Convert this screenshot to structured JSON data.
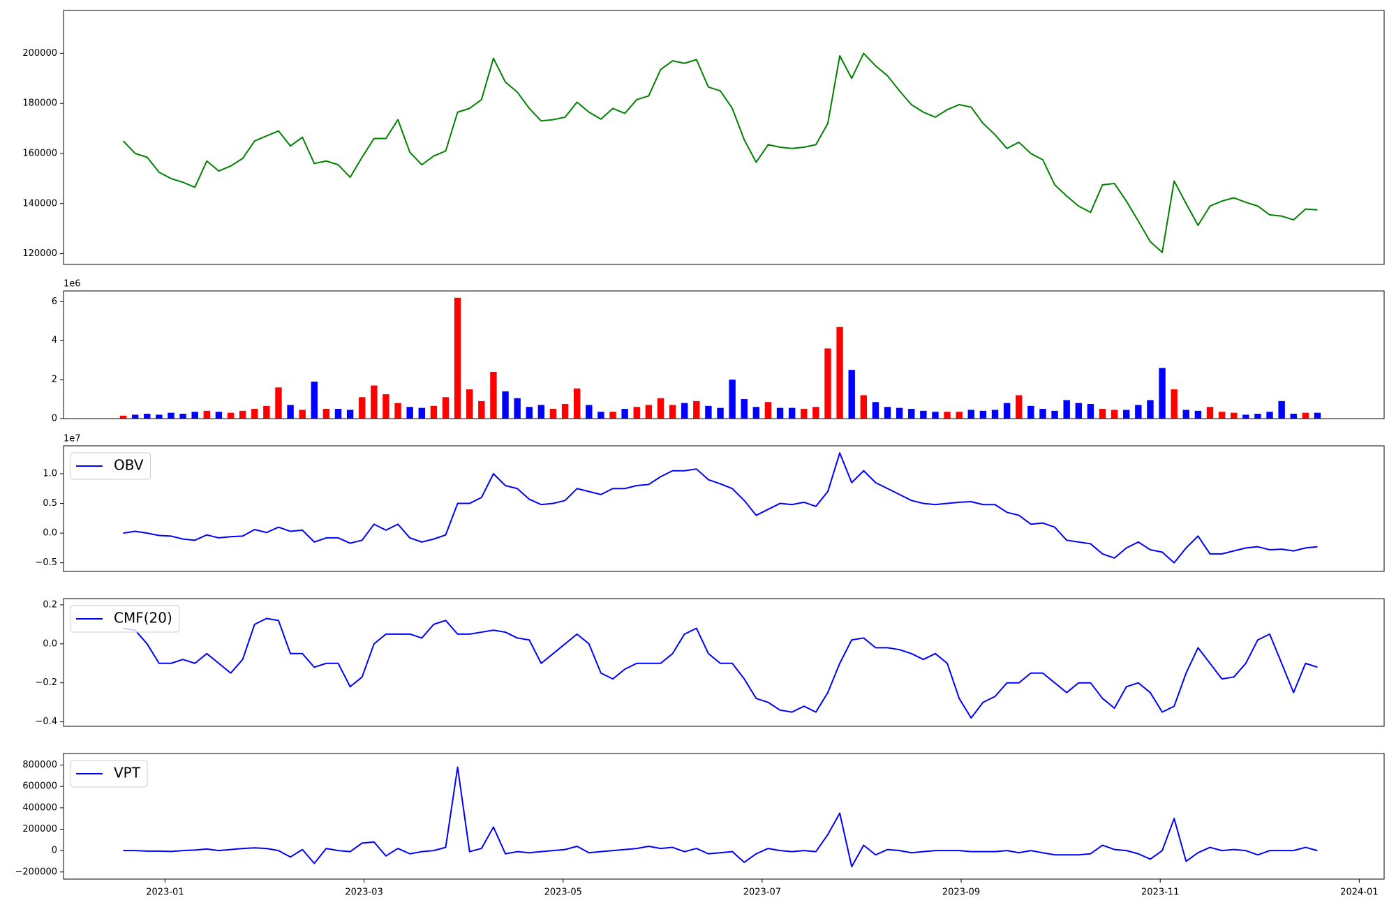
{
  "chart_data": [
    {
      "type": "line",
      "color": "green",
      "x": [
        -0.42,
        -0.3,
        -0.18,
        -0.06,
        0.06,
        0.18,
        0.3,
        0.42,
        0.54,
        0.66,
        0.78,
        0.9,
        1.02,
        1.14,
        1.26,
        1.38,
        1.5,
        1.62,
        1.74,
        1.86,
        1.98,
        2.1,
        2.22,
        2.34,
        2.46,
        2.58,
        2.7,
        2.82,
        2.94,
        3.06,
        3.18,
        3.3,
        3.42,
        3.54,
        3.66,
        3.78,
        3.9,
        4.02,
        4.14,
        4.26,
        4.38,
        4.5,
        4.62,
        4.74,
        4.86,
        4.98,
        5.1,
        5.22,
        5.34,
        5.46,
        5.58,
        5.7,
        5.82,
        5.94,
        6.06,
        6.18,
        6.3,
        6.42,
        6.54,
        6.66,
        6.78,
        6.9,
        7.02,
        7.14,
        7.26,
        7.38,
        7.5,
        7.62,
        7.74,
        7.86,
        7.98,
        8.1,
        8.22,
        8.34,
        8.46,
        8.58,
        8.7,
        8.82,
        8.94,
        9.06,
        9.18,
        9.3,
        9.42,
        9.54,
        9.66,
        9.78,
        9.9,
        10.02,
        10.14,
        10.26,
        10.38,
        10.5,
        10.62,
        10.74,
        10.86,
        10.98,
        11.1,
        11.22,
        11.34,
        11.46,
        11.58
      ],
      "values": [
        165000,
        160000,
        158500,
        152500,
        150000,
        148500,
        146500,
        157000,
        153000,
        155000,
        158000,
        165000,
        167000,
        169000,
        163000,
        166500,
        156000,
        157000,
        155500,
        150500,
        158500,
        166000,
        166000,
        173500,
        160500,
        155500,
        159000,
        161000,
        176500,
        178000,
        181500,
        198000,
        188500,
        184500,
        178000,
        173000,
        173500,
        174500,
        180500,
        176500,
        173700,
        178000,
        176000,
        181500,
        183000,
        193500,
        197000,
        196000,
        197500,
        186500,
        185000,
        178000,
        165500,
        156500,
        163500,
        162500,
        162000,
        162500,
        163500,
        172000,
        199000,
        190000,
        200000,
        195000,
        191000,
        185000,
        179500,
        176500,
        174500,
        177500,
        179500,
        178500,
        172000,
        167500,
        162000,
        164500,
        160000,
        157500,
        147500,
        143000,
        139000,
        136500,
        147500,
        148000,
        141000,
        133000,
        124800,
        120500,
        149000,
        140000,
        131300,
        139000,
        141000,
        142300,
        140500,
        139000,
        135500,
        135000,
        133500,
        137800,
        137500
      ],
      "xlim": [
        -1.02,
        12.25
      ],
      "ylim": [
        115700,
        217100
      ],
      "yticks": [
        120000,
        140000,
        160000,
        180000,
        200000
      ]
    },
    {
      "type": "bar",
      "up_color": "red",
      "down_color": "blue",
      "x": [
        -0.42,
        -0.3,
        -0.18,
        -0.06,
        0.06,
        0.18,
        0.3,
        0.42,
        0.54,
        0.66,
        0.78,
        0.9,
        1.02,
        1.14,
        1.26,
        1.38,
        1.5,
        1.62,
        1.74,
        1.86,
        1.98,
        2.1,
        2.22,
        2.34,
        2.46,
        2.58,
        2.7,
        2.82,
        2.94,
        3.06,
        3.18,
        3.3,
        3.42,
        3.54,
        3.66,
        3.78,
        3.9,
        4.02,
        4.14,
        4.26,
        4.38,
        4.5,
        4.62,
        4.74,
        4.86,
        4.98,
        5.1,
        5.22,
        5.34,
        5.46,
        5.58,
        5.7,
        5.82,
        5.94,
        6.06,
        6.18,
        6.3,
        6.42,
        6.54,
        6.66,
        6.78,
        6.9,
        7.02,
        7.14,
        7.26,
        7.38,
        7.5,
        7.62,
        7.74,
        7.86,
        7.98,
        8.1,
        8.22,
        8.34,
        8.46,
        8.58,
        8.7,
        8.82,
        8.94,
        9.06,
        9.18,
        9.3,
        9.42,
        9.54,
        9.66,
        9.78,
        9.9,
        10.02,
        10.14,
        10.26,
        10.38,
        10.5,
        10.62,
        10.74,
        10.86,
        10.98,
        11.1,
        11.22,
        11.34,
        11.46,
        11.58
      ],
      "values": [
        150000,
        200000,
        250000,
        200000,
        300000,
        250000,
        350000,
        400000,
        350000,
        300000,
        400000,
        500000,
        650000,
        1600000,
        700000,
        450000,
        1900000,
        500000,
        500000,
        450000,
        1100000,
        1700000,
        1250000,
        800000,
        600000,
        550000,
        650000,
        1100000,
        6200000,
        1500000,
        900000,
        2400000,
        1400000,
        1050000,
        600000,
        700000,
        500000,
        750000,
        1550000,
        700000,
        350000,
        350000,
        500000,
        600000,
        700000,
        1050000,
        700000,
        800000,
        900000,
        650000,
        550000,
        2000000,
        1000000,
        600000,
        850000,
        550000,
        550000,
        500000,
        600000,
        3600000,
        4700000,
        2500000,
        1200000,
        850000,
        600000,
        550000,
        500000,
        400000,
        350000,
        350000,
        350000,
        450000,
        400000,
        450000,
        800000,
        1200000,
        650000,
        500000,
        400000,
        950000,
        800000,
        750000,
        500000,
        450000,
        450000,
        700000,
        950000,
        2600000,
        1500000,
        450000,
        400000,
        600000,
        350000,
        300000,
        200000,
        250000,
        350000,
        900000,
        250000,
        300000,
        300000
      ],
      "xlim": [
        -1.02,
        12.25
      ],
      "ylim": [
        0,
        6550000
      ],
      "offset_label": "1e6",
      "yticks": [
        0,
        {
          "value": 2000000,
          "label": "2"
        },
        {
          "value": 4000000,
          "label": "4"
        },
        {
          "value": 6000000,
          "label": "6"
        }
      ]
    },
    {
      "type": "line",
      "legend": "upper left",
      "x": [
        -0.42,
        -0.3,
        -0.18,
        -0.06,
        0.06,
        0.18,
        0.3,
        0.42,
        0.54,
        0.66,
        0.78,
        0.9,
        1.02,
        1.14,
        1.26,
        1.38,
        1.5,
        1.62,
        1.74,
        1.86,
        1.98,
        2.1,
        2.22,
        2.34,
        2.46,
        2.58,
        2.7,
        2.82,
        2.94,
        3.06,
        3.18,
        3.3,
        3.42,
        3.54,
        3.66,
        3.78,
        3.9,
        4.02,
        4.14,
        4.26,
        4.38,
        4.5,
        4.62,
        4.74,
        4.86,
        4.98,
        5.1,
        5.22,
        5.34,
        5.46,
        5.58,
        5.7,
        5.82,
        5.94,
        6.06,
        6.18,
        6.3,
        6.42,
        6.54,
        6.66,
        6.78,
        6.9,
        7.02,
        7.14,
        7.26,
        7.38,
        7.5,
        7.62,
        7.74,
        7.86,
        7.98,
        8.1,
        8.22,
        8.34,
        8.46,
        8.58,
        8.7,
        8.82,
        8.94,
        9.06,
        9.18,
        9.3,
        9.42,
        9.54,
        9.66,
        9.78,
        9.9,
        10.02,
        10.14,
        10.26,
        10.38,
        10.5,
        10.62,
        10.74,
        10.86,
        10.98,
        11.1,
        11.22,
        11.34,
        11.46,
        11.58
      ],
      "series": [
        {
          "name": "OBV",
          "color": "blue",
          "values": [
            0,
            300000,
            0,
            -400000,
            -500000,
            -1000000,
            -1200000,
            -300000,
            -800000,
            -600000,
            -500000,
            600000,
            100000,
            1000000,
            300000,
            500000,
            -1500000,
            -800000,
            -800000,
            -1700000,
            -1200000,
            1500000,
            500000,
            1500000,
            -800000,
            -1500000,
            -1000000,
            -300000,
            5000000,
            5000000,
            6000000,
            10000000,
            8000000,
            7500000,
            5700000,
            4800000,
            5000000,
            5500000,
            7500000,
            7000000,
            6500000,
            7500000,
            7500000,
            8000000,
            8200000,
            9500000,
            10500000,
            10500000,
            10800000,
            9000000,
            8300000,
            7500000,
            5500000,
            3000000,
            4000000,
            5000000,
            4800000,
            5200000,
            4500000,
            7000000,
            13500000,
            8500000,
            10500000,
            8500000,
            7500000,
            6500000,
            5500000,
            5000000,
            4800000,
            5000000,
            5200000,
            5300000,
            4800000,
            4800000,
            3500000,
            3000000,
            1500000,
            1700000,
            1000000,
            -1200000,
            -1500000,
            -1800000,
            -3500000,
            -4200000,
            -2500000,
            -1500000,
            -2800000,
            -3200000,
            -5000000,
            -2500000,
            -500000,
            -3500000,
            -3500000,
            -3000000,
            -2500000,
            -2300000,
            -2800000,
            -2700000,
            -3000000,
            -2500000,
            -2300000
          ]
        }
      ],
      "xlim": [
        -1.02,
        12.25
      ],
      "ylim": [
        -6450000,
        14700000
      ],
      "offset_label": "1e7",
      "yticks": [
        {
          "value": -5000000,
          "label": "−0.5"
        },
        {
          "value": 0,
          "label": "0.0"
        },
        {
          "value": 5000000,
          "label": "0.5"
        },
        {
          "value": 10000000,
          "label": "1.0"
        }
      ]
    },
    {
      "type": "line",
      "legend": "upper left",
      "x": [
        -0.42,
        -0.3,
        -0.18,
        -0.06,
        0.06,
        0.18,
        0.3,
        0.42,
        0.54,
        0.66,
        0.78,
        0.9,
        1.02,
        1.14,
        1.26,
        1.38,
        1.5,
        1.62,
        1.74,
        1.86,
        1.98,
        2.1,
        2.22,
        2.34,
        2.46,
        2.58,
        2.7,
        2.82,
        2.94,
        3.06,
        3.18,
        3.3,
        3.42,
        3.54,
        3.66,
        3.78,
        3.9,
        4.02,
        4.14,
        4.26,
        4.38,
        4.5,
        4.62,
        4.74,
        4.86,
        4.98,
        5.1,
        5.22,
        5.34,
        5.46,
        5.58,
        5.7,
        5.82,
        5.94,
        6.06,
        6.18,
        6.3,
        6.42,
        6.54,
        6.66,
        6.78,
        6.9,
        7.02,
        7.14,
        7.26,
        7.38,
        7.5,
        7.62,
        7.74,
        7.86,
        7.98,
        8.1,
        8.22,
        8.34,
        8.46,
        8.58,
        8.7,
        8.82,
        8.94,
        9.06,
        9.18,
        9.3,
        9.42,
        9.54,
        9.66,
        9.78,
        9.9,
        10.02,
        10.14,
        10.26,
        10.38,
        10.5,
        10.62,
        10.74,
        10.86,
        10.98,
        11.1,
        11.22,
        11.34,
        11.46,
        11.58
      ],
      "series": [
        {
          "name": "CMF(20)",
          "color": "blue",
          "values": [
            0.08,
            0.07,
            0.0,
            -0.1,
            -0.1,
            -0.08,
            -0.1,
            -0.05,
            -0.1,
            -0.15,
            -0.08,
            0.1,
            0.13,
            0.12,
            -0.05,
            -0.05,
            -0.12,
            -0.1,
            -0.1,
            -0.22,
            -0.17,
            0.0,
            0.05,
            0.05,
            0.05,
            0.03,
            0.1,
            0.12,
            0.05,
            0.05,
            0.06,
            0.07,
            0.06,
            0.03,
            0.02,
            -0.1,
            -0.05,
            0.0,
            0.05,
            0.0,
            -0.15,
            -0.18,
            -0.13,
            -0.1,
            -0.1,
            -0.1,
            -0.05,
            0.05,
            0.08,
            -0.05,
            -0.1,
            -0.1,
            -0.18,
            -0.28,
            -0.3,
            -0.34,
            -0.35,
            -0.32,
            -0.35,
            -0.25,
            -0.1,
            0.02,
            0.03,
            -0.02,
            -0.02,
            -0.03,
            -0.05,
            -0.08,
            -0.05,
            -0.1,
            -0.28,
            -0.38,
            -0.3,
            -0.27,
            -0.2,
            -0.2,
            -0.15,
            -0.15,
            -0.2,
            -0.25,
            -0.2,
            -0.2,
            -0.28,
            -0.33,
            -0.22,
            -0.2,
            -0.25,
            -0.35,
            -0.32,
            -0.15,
            -0.02,
            -0.1,
            -0.18,
            -0.17,
            -0.1,
            0.02,
            0.05,
            -0.1,
            -0.25,
            -0.1,
            -0.12
          ]
        }
      ],
      "xlim": [
        -1.02,
        12.25
      ],
      "ylim": [
        -0.423,
        0.232
      ],
      "yticks": [
        {
          "value": -0.4,
          "label": "−0.4"
        },
        {
          "value": -0.2,
          "label": "−0.2"
        },
        {
          "value": 0,
          "label": "0.0"
        },
        0.2
      ]
    },
    {
      "type": "line",
      "legend": "upper left",
      "x": [
        -0.42,
        -0.3,
        -0.18,
        -0.06,
        0.06,
        0.18,
        0.3,
        0.42,
        0.54,
        0.66,
        0.78,
        0.9,
        1.02,
        1.14,
        1.26,
        1.38,
        1.5,
        1.62,
        1.74,
        1.86,
        1.98,
        2.1,
        2.22,
        2.34,
        2.46,
        2.58,
        2.7,
        2.82,
        2.94,
        3.06,
        3.18,
        3.3,
        3.42,
        3.54,
        3.66,
        3.78,
        3.9,
        4.02,
        4.14,
        4.26,
        4.38,
        4.5,
        4.62,
        4.74,
        4.86,
        4.98,
        5.1,
        5.22,
        5.34,
        5.46,
        5.58,
        5.7,
        5.82,
        5.94,
        6.06,
        6.18,
        6.3,
        6.42,
        6.54,
        6.66,
        6.78,
        6.9,
        7.02,
        7.14,
        7.26,
        7.38,
        7.5,
        7.62,
        7.74,
        7.86,
        7.98,
        8.1,
        8.22,
        8.34,
        8.46,
        8.58,
        8.7,
        8.82,
        8.94,
        9.06,
        9.18,
        9.3,
        9.42,
        9.54,
        9.66,
        9.78,
        9.9,
        10.02,
        10.14,
        10.26,
        10.38,
        10.5,
        10.62,
        10.74,
        10.86,
        10.98,
        11.1,
        11.22,
        11.34,
        11.46,
        11.58
      ],
      "series": [
        {
          "name": "VPT",
          "color": "blue",
          "values": [
            0,
            0,
            -5000,
            -5000,
            -8000,
            0,
            5000,
            15000,
            0,
            10000,
            20000,
            25000,
            20000,
            0,
            -60000,
            10000,
            -120000,
            20000,
            0,
            -10000,
            70000,
            80000,
            -50000,
            20000,
            -30000,
            -10000,
            0,
            30000,
            780000,
            -10000,
            20000,
            220000,
            -30000,
            -10000,
            -20000,
            -10000,
            0,
            10000,
            40000,
            -20000,
            -10000,
            0,
            10000,
            20000,
            40000,
            20000,
            30000,
            -10000,
            20000,
            -30000,
            -20000,
            -10000,
            -110000,
            -30000,
            20000,
            0,
            -10000,
            0,
            -10000,
            150000,
            350000,
            -150000,
            50000,
            -40000,
            10000,
            0,
            -20000,
            -10000,
            0,
            0,
            0,
            -10000,
            -10000,
            -10000,
            0,
            -20000,
            0,
            -20000,
            -40000,
            -40000,
            -40000,
            -30000,
            50000,
            10000,
            0,
            -30000,
            -80000,
            0,
            300000,
            -100000,
            -20000,
            30000,
            0,
            10000,
            0,
            -40000,
            0,
            0,
            0,
            30000,
            0
          ]
        }
      ],
      "xlim": [
        -1.02,
        12.25
      ],
      "ylim": [
        -266700,
        908300
      ],
      "yticks": [
        {
          "value": -200000,
          "label": "−200000"
        },
        0,
        200000,
        400000,
        600000,
        800000
      ],
      "xticks": [
        {
          "value": 0,
          "label": "2023-01"
        },
        {
          "value": 2,
          "label": "2023-03"
        },
        {
          "value": 4,
          "label": "2023-05"
        },
        {
          "value": 6,
          "label": "2023-07"
        },
        {
          "value": 8,
          "label": "2023-09"
        },
        {
          "value": 10,
          "label": "2023-11"
        },
        {
          "value": 12,
          "label": "2024-01"
        }
      ]
    }
  ]
}
